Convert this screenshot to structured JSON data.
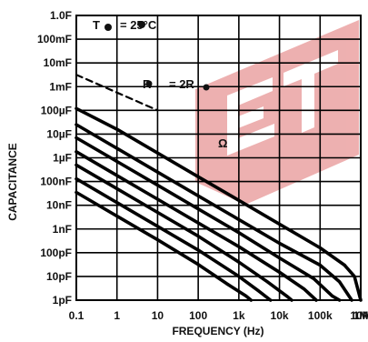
{
  "chart_data": {
    "type": "line",
    "xlabel": "FREQUENCY (Hz)",
    "ylabel": "CAPACITANCE",
    "x_scale": "log",
    "y_scale": "log",
    "xlim": [
      0.1,
      1000000
    ],
    "ylim": [
      1e-12,
      1
    ],
    "grid": true,
    "x_ticks": [
      {
        "v": 0.1,
        "label": "0.1"
      },
      {
        "v": 1,
        "label": "1"
      },
      {
        "v": 10,
        "label": "10"
      },
      {
        "v": 100,
        "label": "100"
      },
      {
        "v": 1000,
        "label": "1k"
      },
      {
        "v": 10000,
        "label": "10k"
      },
      {
        "v": 100000,
        "label": "100k"
      },
      {
        "v": 1000000,
        "label": "1M"
      }
    ],
    "x_extra_label": "10M",
    "y_ticks": [
      {
        "v": 1,
        "label": "1.0F"
      },
      {
        "v": 0.1,
        "label": "100mF"
      },
      {
        "v": 0.01,
        "label": "10mF"
      },
      {
        "v": 0.001,
        "label": "1mF"
      },
      {
        "v": 0.0001,
        "label": "100µF"
      },
      {
        "v": 1e-05,
        "label": "10µF"
      },
      {
        "v": 1e-06,
        "label": "1µF"
      },
      {
        "v": 1e-07,
        "label": "100nF"
      },
      {
        "v": 1e-08,
        "label": "10nF"
      },
      {
        "v": 1e-09,
        "label": "1nF"
      },
      {
        "v": 1e-10,
        "label": "100pF"
      },
      {
        "v": 1e-11,
        "label": "10pF"
      },
      {
        "v": 1e-12,
        "label": "1pF"
      }
    ],
    "annotations": {
      "ta": "T",
      "ta_value": "= 25°C",
      "ra": "R",
      "ra_value": "= 2R",
      "ohm": "Ω"
    },
    "series": [
      {
        "style": "dashed",
        "points": [
          [
            0.1,
            0.00316
          ],
          [
            10,
            0.0001
          ]
        ]
      },
      {
        "style": "solid",
        "points": [
          [
            0.1,
            0.00012
          ],
          [
            1,
            1.6e-05
          ],
          [
            10,
            1.6e-06
          ],
          [
            100,
            1.6e-07
          ],
          [
            1000,
            1.6e-08
          ],
          [
            10000,
            1.6e-09
          ],
          [
            100000,
            1.6e-10
          ],
          [
            400000,
            3e-11
          ],
          [
            700000,
            1e-11
          ],
          [
            1000000,
            1e-12
          ]
        ]
      },
      {
        "style": "solid",
        "points": [
          [
            0.1,
            2.5e-05
          ],
          [
            1,
            2.5e-06
          ],
          [
            10,
            2.5e-07
          ],
          [
            100,
            2.5e-08
          ],
          [
            1000,
            2.5e-09
          ],
          [
            10000,
            2.5e-10
          ],
          [
            100000,
            3e-11
          ],
          [
            300000,
            6e-12
          ],
          [
            600000,
            1e-12
          ]
        ]
      },
      {
        "style": "solid",
        "points": [
          [
            0.1,
            7e-06
          ],
          [
            1,
            7e-07
          ],
          [
            10,
            7e-08
          ],
          [
            100,
            7e-09
          ],
          [
            1000,
            7e-10
          ],
          [
            10000,
            6e-11
          ],
          [
            70000,
            8e-12
          ],
          [
            200000,
            1.5e-12
          ],
          [
            300000,
            1e-12
          ]
        ]
      },
      {
        "style": "solid",
        "points": [
          [
            0.1,
            1.8e-06
          ],
          [
            1,
            1.8e-07
          ],
          [
            10,
            1.8e-08
          ],
          [
            100,
            1.8e-09
          ],
          [
            1000,
            1.8e-10
          ],
          [
            10000,
            1.5e-11
          ],
          [
            40000,
            3e-12
          ],
          [
            80000,
            1e-12
          ]
        ]
      },
      {
        "style": "solid",
        "points": [
          [
            0.1,
            5e-07
          ],
          [
            1,
            5e-08
          ],
          [
            10,
            5e-09
          ],
          [
            100,
            5e-10
          ],
          [
            1000,
            4e-11
          ],
          [
            5000,
            6e-12
          ],
          [
            15000,
            1.5e-12
          ],
          [
            20000,
            1e-12
          ]
        ]
      },
      {
        "style": "solid",
        "points": [
          [
            0.1,
            1.3e-07
          ],
          [
            1,
            1.3e-08
          ],
          [
            10,
            1.3e-09
          ],
          [
            100,
            1.3e-10
          ],
          [
            1000,
            1e-11
          ],
          [
            3000,
            2.5e-12
          ],
          [
            6000,
            1e-12
          ]
        ]
      },
      {
        "style": "solid",
        "points": [
          [
            0.1,
            3.5e-08
          ],
          [
            1,
            3.5e-09
          ],
          [
            10,
            3.5e-10
          ],
          [
            100,
            3.2e-11
          ],
          [
            500,
            5e-12
          ],
          [
            1500,
            1.5e-12
          ],
          [
            2000,
            1e-12
          ]
        ]
      }
    ]
  }
}
